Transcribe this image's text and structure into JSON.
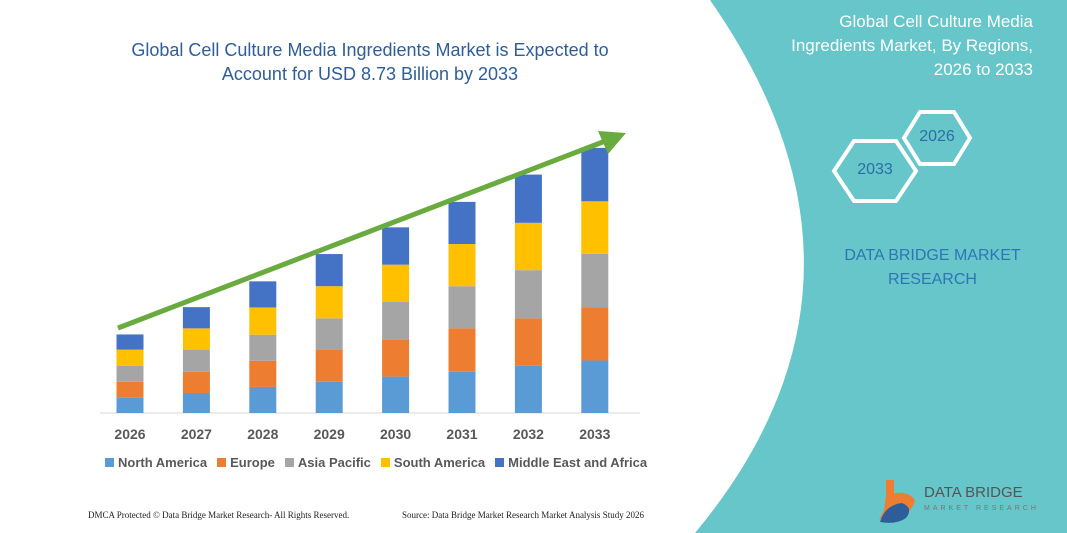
{
  "header": {
    "title_line1": "Global Cell Culture Media Ingredients Market is Expected to",
    "title_line2": "Account for USD 8.73 Billion by 2033"
  },
  "side_panel": {
    "title_line1": "Global Cell Culture Media",
    "title_line2": "Ingredients Market, By Regions,",
    "title_line3": "2026 to 2033",
    "hex_start": "2026",
    "hex_end": "2033",
    "brand_line1": "DATA BRIDGE MARKET",
    "brand_line2": "RESEARCH",
    "panel_color": "#66C6CA"
  },
  "chart_data": {
    "type": "bar",
    "stacked": true,
    "categories": [
      "2026",
      "2027",
      "2028",
      "2029",
      "2030",
      "2031",
      "2032",
      "2033"
    ],
    "series": [
      {
        "name": "North America",
        "color": "#5B9BD5",
        "values": [
          0.5,
          0.66,
          0.86,
          1.03,
          1.2,
          1.36,
          1.56,
          1.73
        ]
      },
      {
        "name": "Europe",
        "color": "#ED7D31",
        "values": [
          0.53,
          0.7,
          0.86,
          1.06,
          1.23,
          1.43,
          1.56,
          1.76
        ]
      },
      {
        "name": "Asia Pacific",
        "color": "#A5A5A5",
        "values": [
          0.53,
          0.73,
          0.86,
          1.03,
          1.23,
          1.39,
          1.59,
          1.76
        ]
      },
      {
        "name": "South America",
        "color": "#FFC000",
        "values": [
          0.53,
          0.7,
          0.9,
          1.06,
          1.23,
          1.39,
          1.56,
          1.73
        ]
      },
      {
        "name": "Middle East and Africa",
        "color": "#4472C4",
        "values": [
          0.5,
          0.7,
          0.86,
          1.06,
          1.23,
          1.39,
          1.59,
          1.76
        ]
      }
    ],
    "ylim": [
      0,
      9
    ],
    "grid": false,
    "legend_position": "bottom",
    "trend_arrow_color": "#6AAB3F"
  },
  "footer": {
    "copyright": "DMCA Protected © Data Bridge Market Research-  All Rights Reserved.",
    "source": "Source: Data Bridge Market Research  Market Analysis Study 2026"
  },
  "logo": {
    "name": "DATA BRIDGE",
    "tagline": "MARKET RESEARCH"
  }
}
